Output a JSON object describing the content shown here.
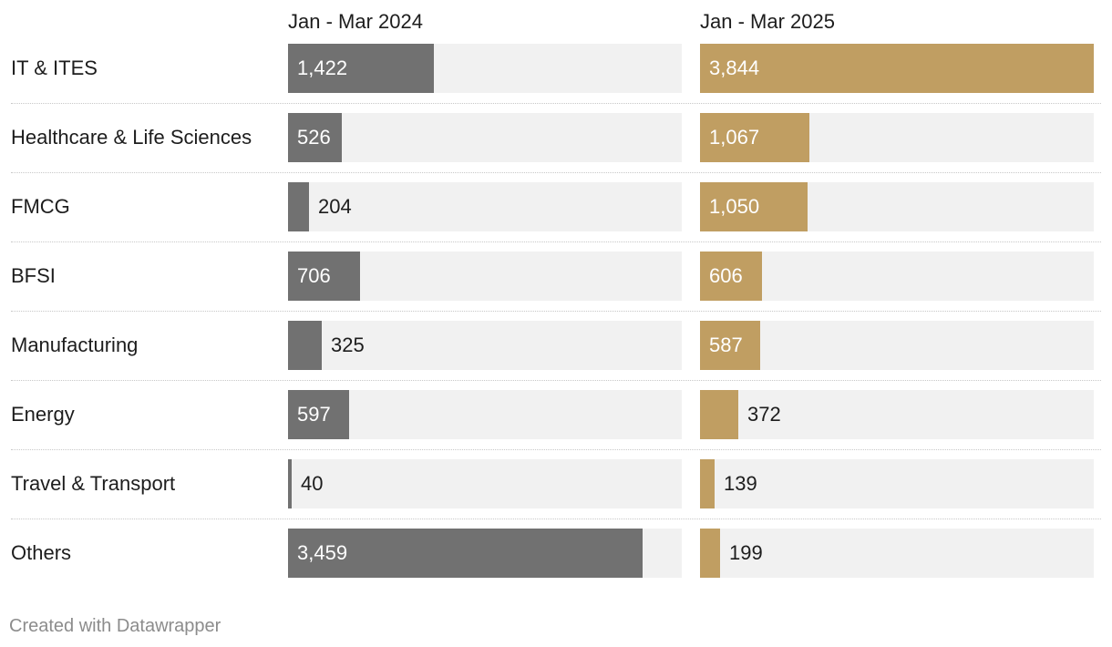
{
  "chart_data": {
    "type": "bar",
    "orientation": "horizontal",
    "columns": [
      "Jan - Mar 2024",
      "Jan - Mar 2025"
    ],
    "categories": [
      "IT & ITES",
      "Healthcare & Life Sciences",
      "FMCG",
      "BFSI",
      "Manufacturing",
      "Energy",
      "Travel & Transport",
      "Others"
    ],
    "series": [
      {
        "name": "Jan - Mar 2024",
        "values": [
          1422,
          526,
          204,
          706,
          325,
          597,
          40,
          3459
        ],
        "color": "#717171"
      },
      {
        "name": "Jan - Mar 2025",
        "values": [
          3844,
          1067,
          1050,
          606,
          587,
          372,
          139,
          199
        ],
        "color": "#c09e62"
      }
    ],
    "value_labels": [
      [
        "1,422",
        "526",
        "204",
        "706",
        "325",
        "597",
        "40",
        "3,459"
      ],
      [
        "3,844",
        "1,067",
        "1,050",
        "606",
        "587",
        "372",
        "139",
        "199"
      ]
    ],
    "xlim": [
      0,
      3844
    ],
    "grid": false,
    "legend": "none"
  },
  "footer": {
    "credit": "Created with Datawrapper"
  },
  "colors": {
    "series_2024": "#717171",
    "series_2025": "#c09e62",
    "track": "#f1f1f1"
  }
}
